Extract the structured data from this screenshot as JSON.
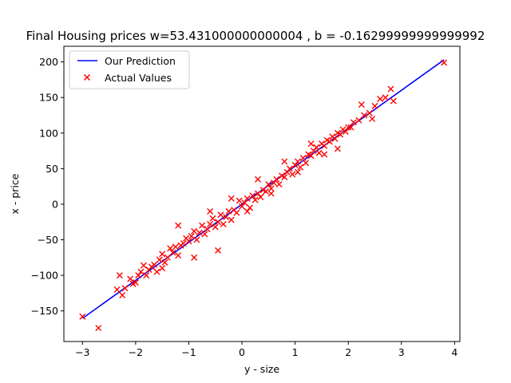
{
  "chart_data": {
    "type": "scatter",
    "title": "Final Housing prices w=53.431000000000004 , b = -0.16299999999999992",
    "xlabel": "y - size",
    "ylabel": "x - price",
    "xlim": [
      -3.35,
      4.1
    ],
    "ylim": [
      -193,
      222
    ],
    "x_ticks": [
      -3,
      -2,
      -1,
      0,
      1,
      2,
      3,
      4
    ],
    "y_ticks": [
      -150,
      -100,
      -50,
      0,
      50,
      100,
      150,
      200
    ],
    "x_tick_labels": [
      "−3",
      "−2",
      "−1",
      "0",
      "1",
      "2",
      "3",
      "4"
    ],
    "y_tick_labels": [
      "−150",
      "−100",
      "−50",
      "0",
      "50",
      "100",
      "150",
      "200"
    ],
    "legend": {
      "placement": "upper-left"
    },
    "series": [
      {
        "name": "Our Prediction",
        "kind": "line",
        "color": "#0000ff",
        "x": [
          -3.0,
          3.8
        ],
        "y": [
          -160.46,
          202.87
        ]
      },
      {
        "name": "Actual Values",
        "kind": "scatter",
        "marker": "x",
        "color": "#ff0000",
        "x": [
          -3.0,
          -2.7,
          -2.3,
          -2.25,
          -2.2,
          -2.1,
          -2.0,
          -1.9,
          -1.85,
          -1.8,
          -1.75,
          -1.7,
          -1.65,
          -1.6,
          -1.55,
          -1.5,
          -1.45,
          -1.4,
          -1.35,
          -1.3,
          -1.25,
          -1.2,
          -1.15,
          -1.1,
          -1.05,
          -1.0,
          -0.95,
          -0.9,
          -0.85,
          -0.8,
          -0.75,
          -0.7,
          -0.65,
          -0.6,
          -0.55,
          -0.5,
          -0.45,
          -0.4,
          -0.35,
          -0.3,
          -0.25,
          -0.2,
          -0.15,
          -0.1,
          -0.05,
          0.0,
          0.05,
          0.1,
          0.15,
          0.2,
          0.25,
          0.3,
          0.35,
          0.4,
          0.45,
          0.5,
          0.55,
          0.6,
          0.65,
          0.7,
          0.75,
          0.8,
          0.85,
          0.9,
          0.95,
          1.0,
          1.05,
          1.1,
          1.15,
          1.2,
          1.25,
          1.3,
          1.35,
          1.4,
          1.45,
          1.5,
          1.55,
          1.6,
          1.65,
          1.7,
          1.75,
          1.8,
          1.85,
          1.9,
          1.95,
          2.0,
          2.1,
          2.2,
          2.3,
          2.4,
          2.5,
          2.6,
          2.7,
          2.8,
          2.85,
          3.8,
          -2.35,
          -2.05,
          -1.95,
          -1.5,
          -1.2,
          -0.9,
          -0.6,
          -0.45,
          -0.2,
          0.1,
          0.3,
          0.55,
          0.8,
          1.05,
          1.3,
          1.55,
          1.8,
          2.05,
          2.25,
          2.45
        ],
        "y": [
          -158,
          -174,
          -100,
          -128,
          -118,
          -105,
          -110,
          -95,
          -86,
          -100,
          -92,
          -88,
          -85,
          -95,
          -78,
          -70,
          -82,
          -75,
          -62,
          -68,
          -60,
          -72,
          -58,
          -55,
          -48,
          -52,
          -45,
          -38,
          -50,
          -40,
          -30,
          -42,
          -35,
          -28,
          -20,
          -32,
          -25,
          -15,
          -28,
          -18,
          -10,
          -22,
          -8,
          -12,
          5,
          -3,
          2,
          8,
          -5,
          12,
          6,
          15,
          10,
          20,
          18,
          28,
          22,
          30,
          35,
          28,
          40,
          38,
          45,
          50,
          42,
          55,
          60,
          52,
          65,
          58,
          70,
          68,
          75,
          80,
          72,
          85,
          82,
          90,
          88,
          95,
          92,
          100,
          98,
          105,
          102,
          108,
          115,
          118,
          125,
          128,
          138,
          148,
          150,
          162,
          145,
          199,
          -120,
          -112,
          -100,
          -90,
          -30,
          -75,
          -10,
          -65,
          8,
          -10,
          35,
          15,
          60,
          45,
          85,
          70,
          78,
          108,
          140,
          120
        ]
      }
    ]
  }
}
